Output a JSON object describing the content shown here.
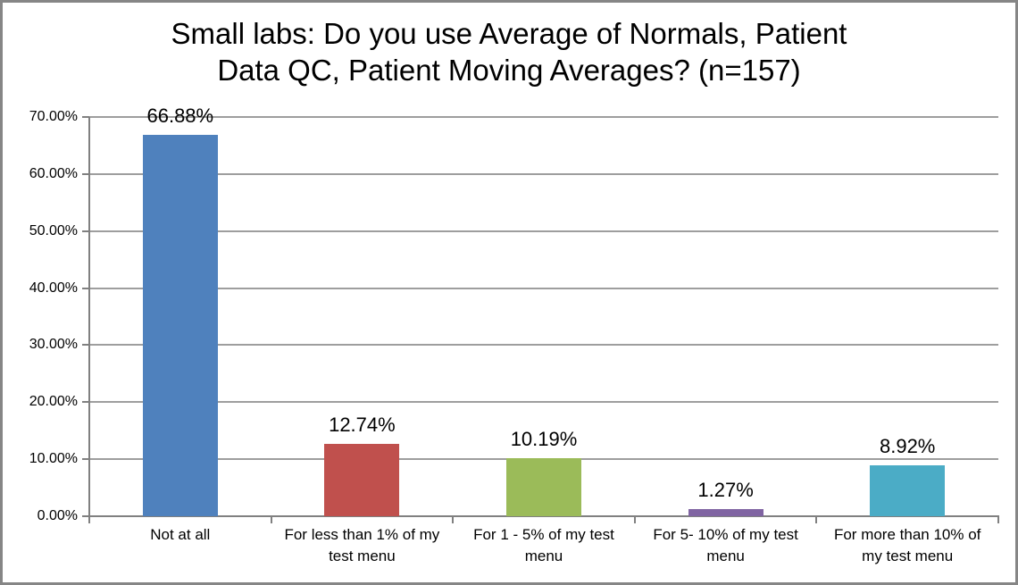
{
  "title": {
    "lines": [
      "Small labs: Do you use Average of Normals, Patient",
      "Data QC, Patient Moving Averages? (n=157)"
    ]
  },
  "chart_data": {
    "type": "bar",
    "title": "Small labs: Do you use Average of Normals, Patient Data QC, Patient Moving Averages? (n=157)",
    "sample_size_note": "n=157",
    "categories": [
      "Not at all",
      "For less than 1% of my test menu",
      "For 1 - 5% of my test menu",
      "For 5- 10% of my test menu",
      "For more than 10% of my test menu"
    ],
    "values": [
      66.88,
      12.74,
      10.19,
      1.27,
      8.92
    ],
    "data_labels": [
      "66.88%",
      "12.74%",
      "10.19%",
      "1.27%",
      "8.92%"
    ],
    "bar_colors": [
      "#4F81BD",
      "#C0504D",
      "#9BBB59",
      "#8064A2",
      "#4BACC6"
    ],
    "xlabel": "",
    "ylabel": "",
    "ylim": [
      0,
      70
    ],
    "ytick_step": 10,
    "ytick_labels": [
      "0.00%",
      "10.00%",
      "20.00%",
      "30.00%",
      "40.00%",
      "50.00%",
      "60.00%",
      "70.00%"
    ],
    "grid": "horizontal",
    "legend": "none"
  },
  "colors": {
    "gridline": "#9E9E9E",
    "axis": "#808080",
    "frame_border": "#868686",
    "background": "#FFFFFF",
    "text": "#000000"
  }
}
